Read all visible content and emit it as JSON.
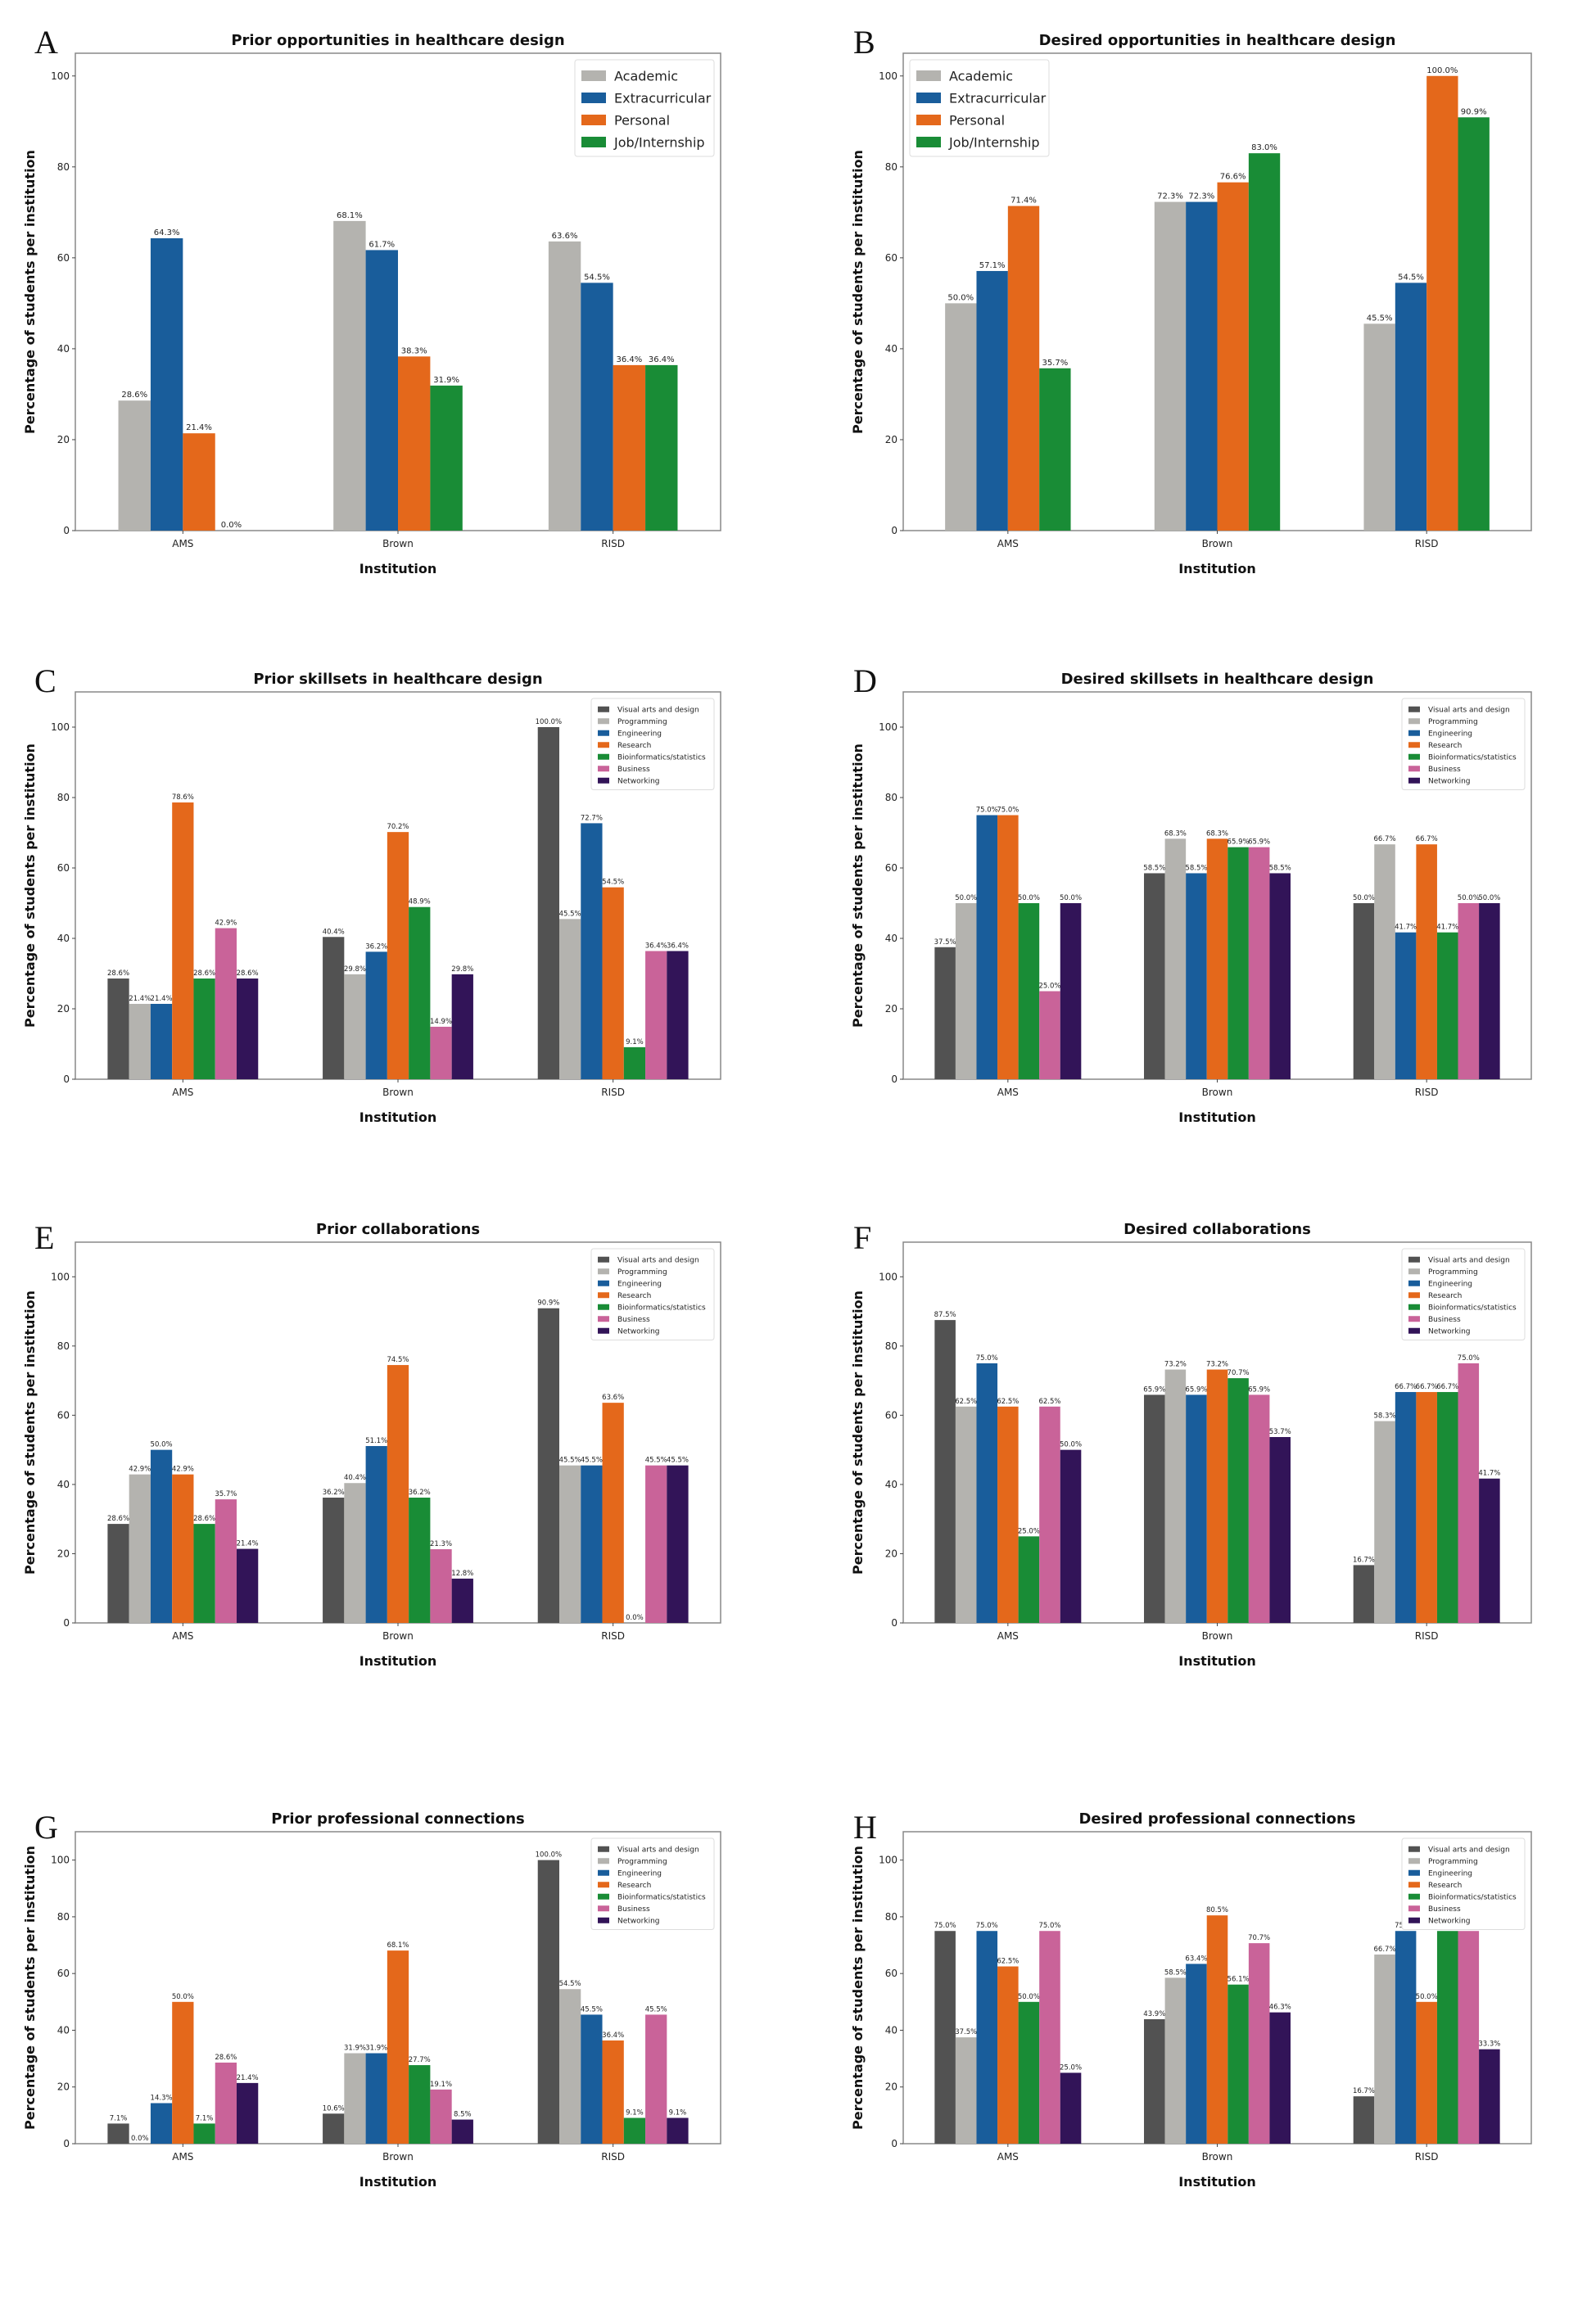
{
  "figure": {
    "colors": {
      "Academic": "#b4b3af",
      "Extracurricular": "#195d9b",
      "Personal": "#e4681b",
      "Job/Internship": "#198c36",
      "Visual arts and design": "#525252",
      "Programming": "#b4b3af",
      "Engineering": "#195d9b",
      "Research": "#e4681b",
      "Bioinformatics/statistics": "#198c36",
      "Business": "#c96399",
      "Networking": "#321458"
    }
  },
  "chart_data": [
    {
      "panel": "A",
      "type": "bar",
      "title": "Prior opportunities in healthcare design",
      "xlabel": "Institution",
      "ylabel": "Percentage of students per institution",
      "categories": [
        "AMS",
        "Brown",
        "RISD"
      ],
      "ylim": [
        0,
        105
      ],
      "yticks": [
        0,
        20,
        40,
        60,
        80,
        100
      ],
      "legend_position": "top-right",
      "grid": false,
      "series": [
        {
          "name": "Academic",
          "values": [
            28.6,
            68.1,
            63.6
          ],
          "labels": [
            "28.6%",
            "68.1%",
            "63.6%"
          ]
        },
        {
          "name": "Extracurricular",
          "values": [
            64.3,
            61.7,
            54.5
          ],
          "labels": [
            "64.3%",
            "61.7%",
            "54.5%"
          ]
        },
        {
          "name": "Personal",
          "values": [
            21.4,
            38.3,
            36.4
          ],
          "labels": [
            "21.4%",
            "38.3%",
            "36.4%"
          ]
        },
        {
          "name": "Job/Internship",
          "values": [
            0.0,
            31.9,
            36.4
          ],
          "labels": [
            "0.0%",
            "31.9%",
            "36.4%"
          ]
        }
      ]
    },
    {
      "panel": "B",
      "type": "bar",
      "title": "Desired opportunities in healthcare design",
      "xlabel": "Institution",
      "ylabel": "Percentage of students per institution",
      "categories": [
        "AMS",
        "Brown",
        "RISD"
      ],
      "ylim": [
        0,
        105
      ],
      "yticks": [
        0,
        20,
        40,
        60,
        80,
        100
      ],
      "legend_position": "top-left",
      "grid": false,
      "series": [
        {
          "name": "Academic",
          "values": [
            50.0,
            72.3,
            45.5
          ],
          "labels": [
            "50.0%",
            "72.3%",
            "45.5%"
          ]
        },
        {
          "name": "Extracurricular",
          "values": [
            57.1,
            72.3,
            54.5
          ],
          "labels": [
            "57.1%",
            "72.3%",
            "54.5%"
          ]
        },
        {
          "name": "Personal",
          "values": [
            71.4,
            76.6,
            100.0
          ],
          "labels": [
            "71.4%",
            "76.6%",
            "100.0%"
          ]
        },
        {
          "name": "Job/Internship",
          "values": [
            35.7,
            83.0,
            90.9
          ],
          "labels": [
            "35.7%",
            "83.0%",
            "90.9%"
          ]
        }
      ]
    },
    {
      "panel": "C",
      "type": "bar",
      "title": "Prior skillsets in healthcare design",
      "xlabel": "Institution",
      "ylabel": "Percentage of students per institution",
      "categories": [
        "AMS",
        "Brown",
        "RISD"
      ],
      "ylim": [
        0,
        110
      ],
      "yticks": [
        0,
        20,
        40,
        60,
        80,
        100
      ],
      "legend_position": "top-right",
      "grid": false,
      "series": [
        {
          "name": "Visual arts and design",
          "values": [
            28.6,
            40.4,
            100.0
          ],
          "labels": [
            "28.6%",
            "40.4%",
            "100.0%"
          ]
        },
        {
          "name": "Programming",
          "values": [
            21.4,
            29.8,
            45.5
          ],
          "labels": [
            "21.4%",
            "29.8%",
            "45.5%"
          ]
        },
        {
          "name": "Engineering",
          "values": [
            21.4,
            36.2,
            72.7
          ],
          "labels": [
            "21.4%",
            "36.2%",
            "72.7%"
          ]
        },
        {
          "name": "Research",
          "values": [
            78.6,
            70.2,
            54.5
          ],
          "labels": [
            "78.6%",
            "70.2%",
            "54.5%"
          ]
        },
        {
          "name": "Bioinformatics/statistics",
          "values": [
            28.6,
            48.9,
            9.1
          ],
          "labels": [
            "28.6%",
            "48.9%",
            "9.1%"
          ]
        },
        {
          "name": "Business",
          "values": [
            42.9,
            14.9,
            36.4
          ],
          "labels": [
            "42.9%",
            "14.9%",
            "36.4%"
          ]
        },
        {
          "name": "Networking",
          "values": [
            28.6,
            29.8,
            36.4
          ],
          "labels": [
            "28.6%",
            "29.8%",
            "36.4%"
          ]
        }
      ]
    },
    {
      "panel": "D",
      "type": "bar",
      "title": "Desired skillsets in healthcare design",
      "xlabel": "Institution",
      "ylabel": "Percentage of students per institution",
      "categories": [
        "AMS",
        "Brown",
        "RISD"
      ],
      "ylim": [
        0,
        110
      ],
      "yticks": [
        0,
        20,
        40,
        60,
        80,
        100
      ],
      "legend_position": "top-right",
      "grid": false,
      "series": [
        {
          "name": "Visual arts and design",
          "values": [
            37.5,
            58.5,
            50.0
          ],
          "labels": [
            "37.5%",
            "58.5%",
            "50.0%"
          ]
        },
        {
          "name": "Programming",
          "values": [
            50.0,
            68.3,
            66.7
          ],
          "labels": [
            "50.0%",
            "68.3%",
            "66.7%"
          ]
        },
        {
          "name": "Engineering",
          "values": [
            75.0,
            58.5,
            41.7
          ],
          "labels": [
            "75.0%",
            "58.5%",
            "41.7%"
          ]
        },
        {
          "name": "Research",
          "values": [
            75.0,
            68.3,
            66.7
          ],
          "labels": [
            "75.0%",
            "68.3%",
            "66.7%"
          ]
        },
        {
          "name": "Bioinformatics/statistics",
          "values": [
            50.0,
            65.9,
            41.7
          ],
          "labels": [
            "50.0%",
            "65.9%",
            "41.7%"
          ]
        },
        {
          "name": "Business",
          "values": [
            25.0,
            65.9,
            50.0
          ],
          "labels": [
            "25.0%",
            "65.9%",
            "50.0%"
          ]
        },
        {
          "name": "Networking",
          "values": [
            50.0,
            58.5,
            50.0
          ],
          "labels": [
            "50.0%",
            "58.5%",
            "50.0%"
          ]
        }
      ]
    },
    {
      "panel": "E",
      "type": "bar",
      "title": "Prior collaborations",
      "xlabel": "Institution",
      "ylabel": "Percentage of students per institution",
      "categories": [
        "AMS",
        "Brown",
        "RISD"
      ],
      "ylim": [
        0,
        110
      ],
      "yticks": [
        0,
        20,
        40,
        60,
        80,
        100
      ],
      "legend_position": "top-right",
      "grid": false,
      "series": [
        {
          "name": "Visual arts and design",
          "values": [
            28.6,
            36.2,
            90.9
          ],
          "labels": [
            "28.6%",
            "36.2%",
            "90.9%"
          ]
        },
        {
          "name": "Programming",
          "values": [
            42.9,
            40.4,
            45.5
          ],
          "labels": [
            "42.9%",
            "40.4%",
            "45.5%"
          ]
        },
        {
          "name": "Engineering",
          "values": [
            50.0,
            51.1,
            45.5
          ],
          "labels": [
            "50.0%",
            "51.1%",
            "45.5%"
          ]
        },
        {
          "name": "Research",
          "values": [
            42.9,
            74.5,
            63.6
          ],
          "labels": [
            "42.9%",
            "74.5%",
            "63.6%"
          ]
        },
        {
          "name": "Bioinformatics/statistics",
          "values": [
            28.6,
            36.2,
            0.0
          ],
          "labels": [
            "28.6%",
            "36.2%",
            "0.0%"
          ]
        },
        {
          "name": "Business",
          "values": [
            35.7,
            21.3,
            45.5
          ],
          "labels": [
            "35.7%",
            "21.3%",
            "45.5%"
          ]
        },
        {
          "name": "Networking",
          "values": [
            21.4,
            12.8,
            45.5
          ],
          "labels": [
            "21.4%",
            "12.8%",
            "45.5%"
          ]
        }
      ]
    },
    {
      "panel": "F",
      "type": "bar",
      "title": "Desired collaborations",
      "xlabel": "Institution",
      "ylabel": "Percentage of students per institution",
      "categories": [
        "AMS",
        "Brown",
        "RISD"
      ],
      "ylim": [
        0,
        110
      ],
      "yticks": [
        0,
        20,
        40,
        60,
        80,
        100
      ],
      "legend_position": "top-right",
      "grid": false,
      "series": [
        {
          "name": "Visual arts and design",
          "values": [
            87.5,
            65.9,
            16.7
          ],
          "labels": [
            "87.5%",
            "65.9%",
            "16.7%"
          ]
        },
        {
          "name": "Programming",
          "values": [
            62.5,
            73.2,
            58.3
          ],
          "labels": [
            "62.5%",
            "73.2%",
            "58.3%"
          ]
        },
        {
          "name": "Engineering",
          "values": [
            75.0,
            65.9,
            66.7
          ],
          "labels": [
            "75.0%",
            "65.9%",
            "66.7%"
          ]
        },
        {
          "name": "Research",
          "values": [
            62.5,
            73.2,
            66.7
          ],
          "labels": [
            "62.5%",
            "73.2%",
            "66.7%"
          ]
        },
        {
          "name": "Bioinformatics/statistics",
          "values": [
            25.0,
            70.7,
            66.7
          ],
          "labels": [
            "25.0%",
            "70.7%",
            "66.7%"
          ]
        },
        {
          "name": "Business",
          "values": [
            62.5,
            65.9,
            75.0
          ],
          "labels": [
            "62.5%",
            "65.9%",
            "75.0%"
          ]
        },
        {
          "name": "Networking",
          "values": [
            50.0,
            53.7,
            41.7
          ],
          "labels": [
            "50.0%",
            "53.7%",
            "41.7%"
          ]
        }
      ]
    },
    {
      "panel": "G",
      "type": "bar",
      "title": "Prior professional connections",
      "xlabel": "Institution",
      "ylabel": "Percentage of students per institution",
      "categories": [
        "AMS",
        "Brown",
        "RISD"
      ],
      "ylim": [
        0,
        110
      ],
      "yticks": [
        0,
        20,
        40,
        60,
        80,
        100
      ],
      "legend_position": "top-right",
      "grid": false,
      "series": [
        {
          "name": "Visual arts and design",
          "values": [
            7.1,
            10.6,
            100.0
          ],
          "labels": [
            "7.1%",
            "10.6%",
            "100.0%"
          ]
        },
        {
          "name": "Programming",
          "values": [
            0.0,
            31.9,
            54.5
          ],
          "labels": [
            "0.0%",
            "31.9%",
            "54.5%"
          ]
        },
        {
          "name": "Engineering",
          "values": [
            14.3,
            31.9,
            45.5
          ],
          "labels": [
            "14.3%",
            "31.9%",
            "45.5%"
          ]
        },
        {
          "name": "Research",
          "values": [
            50.0,
            68.1,
            36.4
          ],
          "labels": [
            "50.0%",
            "68.1%",
            "36.4%"
          ]
        },
        {
          "name": "Bioinformatics/statistics",
          "values": [
            7.1,
            27.7,
            9.1
          ],
          "labels": [
            "7.1%",
            "27.7%",
            "9.1%"
          ]
        },
        {
          "name": "Business",
          "values": [
            28.6,
            19.1,
            45.5
          ],
          "labels": [
            "28.6%",
            "19.1%",
            "45.5%"
          ]
        },
        {
          "name": "Networking",
          "values": [
            21.4,
            8.5,
            9.1
          ],
          "labels": [
            "21.4%",
            "8.5%",
            "9.1%"
          ]
        }
      ]
    },
    {
      "panel": "H",
      "type": "bar",
      "title": "Desired professional connections",
      "xlabel": "Institution",
      "ylabel": "Percentage of students per institution",
      "categories": [
        "AMS",
        "Brown",
        "RISD"
      ],
      "ylim": [
        0,
        110
      ],
      "yticks": [
        0,
        20,
        40,
        60,
        80,
        100
      ],
      "legend_position": "top-right",
      "grid": false,
      "series": [
        {
          "name": "Visual arts and design",
          "values": [
            75.0,
            43.9,
            16.7
          ],
          "labels": [
            "75.0%",
            "43.9%",
            "16.7%"
          ]
        },
        {
          "name": "Programming",
          "values": [
            37.5,
            58.5,
            66.7
          ],
          "labels": [
            "37.5%",
            "58.5%",
            "66.7%"
          ]
        },
        {
          "name": "Engineering",
          "values": [
            75.0,
            63.4,
            75.0
          ],
          "labels": [
            "75.0%",
            "63.4%",
            "75.0%"
          ]
        },
        {
          "name": "Research",
          "values": [
            62.5,
            80.5,
            50.0
          ],
          "labels": [
            "62.5%",
            "80.5%",
            "50.0%"
          ]
        },
        {
          "name": "Bioinformatics/statistics",
          "values": [
            50.0,
            56.1,
            75.0
          ],
          "labels": [
            "50.0%",
            "56.1%",
            "75.0%"
          ]
        },
        {
          "name": "Business",
          "values": [
            75.0,
            70.7,
            75.0
          ],
          "labels": [
            "75.0%",
            "70.7%",
            "75.0%"
          ]
        },
        {
          "name": "Networking",
          "values": [
            25.0,
            46.3,
            33.3
          ],
          "labels": [
            "25.0%",
            "46.3%",
            "33.3%"
          ]
        }
      ]
    }
  ]
}
